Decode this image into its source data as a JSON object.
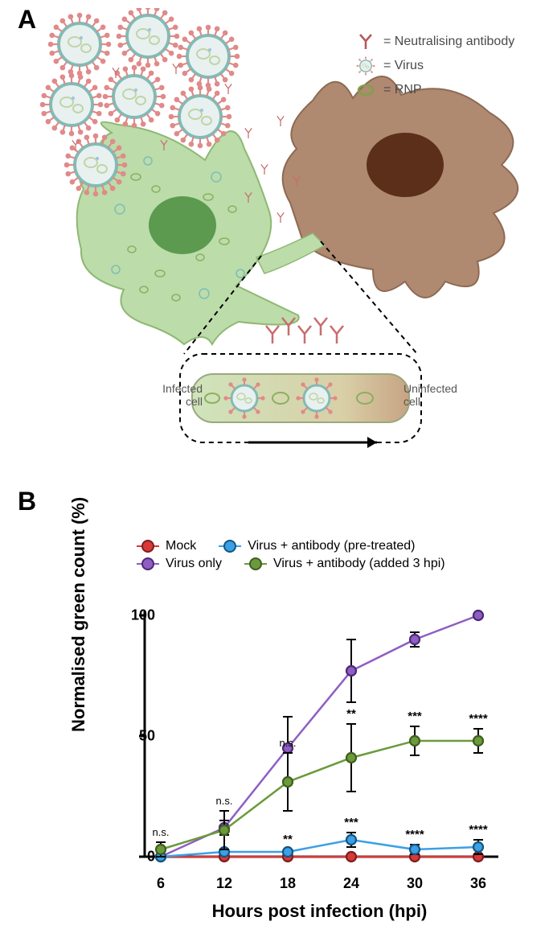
{
  "panelA": {
    "label": "A",
    "legend": [
      {
        "glyph": "antibody",
        "label": "= Neutralising antibody",
        "color": "#b85757"
      },
      {
        "glyph": "virus",
        "label": "= Virus",
        "color": "#5aa7a0"
      },
      {
        "glyph": "rnp",
        "label": "= RNP",
        "color": "#7ca24a"
      }
    ],
    "inset": {
      "left_label": "Infected cell",
      "right_label": "Uninfected cell"
    },
    "cells": {
      "infected_fill": "#bcdcaa",
      "infected_nucleus": "#5b9a4f",
      "uninfected_fill": "#b08971",
      "uninfected_nucleus": "#5b2f1a"
    },
    "virus": {
      "membrane": "#7dbeb6",
      "spikes": "#e08a8a",
      "inner": "#e9f0f0",
      "rnp": "#bdd6a5"
    },
    "antibody_color": "#c86d6d",
    "rnp_color": "#8ab060"
  },
  "panelB": {
    "label": "B",
    "chart": {
      "type": "line",
      "xlabel": "Hours post infection (hpi)",
      "ylabel": "Normalised green count (%)",
      "x": [
        6,
        12,
        18,
        24,
        30,
        36
      ],
      "ylim": [
        0,
        100
      ],
      "ytick_step": 50,
      "background_color": "#ffffff",
      "axis_color": "#000000",
      "label_fontsize": 22,
      "tick_fontsize": 18,
      "marker_size": 12,
      "line_width": 2.5,
      "series": [
        {
          "name": "Mock",
          "color": "#d93838",
          "border": "#7a1f1f",
          "y": [
            0,
            0,
            0,
            0,
            0,
            0
          ],
          "err": [
            0,
            0,
            0,
            0,
            0,
            0
          ],
          "sig": [
            "",
            "",
            "",
            "",
            "",
            ""
          ]
        },
        {
          "name": "Virus only",
          "color": "#8e5ec2",
          "border": "#4a2a74",
          "y": [
            0,
            12,
            45,
            77,
            90,
            100
          ],
          "err": [
            0,
            3,
            13,
            13,
            3,
            0
          ],
          "sig": [
            "",
            "",
            "",
            "",
            "",
            ""
          ]
        },
        {
          "name": "Virus + antibody (pre-treated)",
          "color": "#3aa0e8",
          "border": "#15557f",
          "y": [
            0,
            2,
            2,
            7,
            3,
            4
          ],
          "err": [
            0,
            0,
            1,
            3,
            2,
            3
          ],
          "sig": [
            "",
            "",
            "**",
            "***",
            "****",
            "****"
          ]
        },
        {
          "name": "Virus + antibody (added 3 hpi)",
          "color": "#6b9a3c",
          "border": "#3f5e20",
          "y": [
            3,
            11,
            31,
            41,
            48,
            48
          ],
          "err": [
            3,
            8,
            12,
            14,
            6,
            5
          ],
          "sig": [
            "n.s.",
            "n.s.",
            "n.s.",
            "**",
            "***",
            "****"
          ]
        }
      ]
    }
  }
}
